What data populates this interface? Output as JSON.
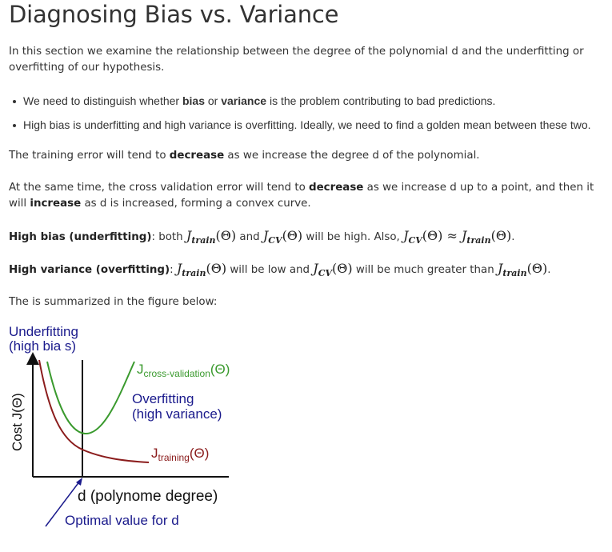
{
  "title": "Diagnosing Bias vs. Variance",
  "intro": "In this section we examine the relationship between the degree of the polynomial d and the underfitting or overfitting of our hypothesis.",
  "bullets": {
    "b1_pre": "We need to distinguish whether ",
    "b1_bias": "bias",
    "b1_mid": " or ",
    "b1_variance": "variance",
    "b1_post": " is the problem contributing to bad predictions.",
    "b2": "High bias is underfitting and high variance is overfitting. Ideally, we need to find a golden mean between these two."
  },
  "training_para": {
    "pre": "The training error will tend to ",
    "bold": "decrease",
    "post": " as we increase the degree d of the polynomial."
  },
  "cv_para": {
    "pre": "At the same time, the cross validation error will tend to ",
    "bold1": "decrease",
    "mid": " as we increase d up to a point, and then it will ",
    "bold2": "increase",
    "post": " as d is increased, forming a convex curve."
  },
  "high_bias": {
    "label": "High bias (underfitting)",
    "t1": ": both ",
    "t2": " and ",
    "t3": " will be high. Also, ",
    "t4": "."
  },
  "high_variance": {
    "label": "High variance (overfitting)",
    "t1": ": ",
    "t2": " will be low and ",
    "t3": " will be much greater than ",
    "t4": "."
  },
  "math": {
    "J": "J",
    "train_sub": "train",
    "cv_sub": "CV",
    "theta": "(Θ)",
    "approx": "≈"
  },
  "summary": "The is summarized in the figure below:",
  "figure": {
    "underfitting_line1": "Underfitting",
    "underfitting_line2": "(high bia s)",
    "ylabel": "Cost J(Θ)",
    "cv_J": "J",
    "cv_sub": "cross-validation",
    "cv_theta": "(Θ)",
    "overfitting_line1": "Overfitting",
    "overfitting_line2": "(high variance)",
    "train_J": "J",
    "train_sub": "training",
    "train_theta": "(Θ)",
    "xlabel": "d (polynome degree)",
    "optimal": "Optimal value for d",
    "colors": {
      "blue": "#1a1a8c",
      "green": "#3a9a2e",
      "red": "#8b1c1c",
      "axis": "#111111"
    }
  }
}
